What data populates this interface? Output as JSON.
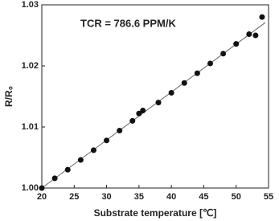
{
  "chart_data": {
    "type": "scatter",
    "annotation": "TCR = 786.6 PPM/K",
    "x_label": "Substrate temperature [℃]",
    "y_label": "R/R₀",
    "xlim": [
      20,
      55
    ],
    "ylim": [
      1.0,
      1.03
    ],
    "xticks": [
      20,
      25,
      30,
      35,
      40,
      45,
      50,
      55
    ],
    "yticks": [
      {
        "value": 1.0,
        "label": "1.00"
      },
      {
        "value": 1.01,
        "label": "1.01"
      },
      {
        "value": 1.02,
        "label": "1.02"
      },
      {
        "value": 1.03,
        "label": "1.03"
      }
    ],
    "series": [
      {
        "color": "#111111",
        "x": [
          20,
          22,
          24,
          26,
          28,
          30,
          32,
          34,
          35,
          35.6,
          38,
          40,
          42,
          44,
          46,
          48,
          50,
          52,
          53,
          54
        ],
        "values": [
          1.0,
          1.0016,
          1.003,
          1.0046,
          1.0062,
          1.0078,
          1.0094,
          1.011,
          1.0122,
          1.0127,
          1.014,
          1.0156,
          1.0172,
          1.0188,
          1.0204,
          1.022,
          1.0236,
          1.0252,
          1.025,
          1.028
        ]
      }
    ],
    "fit_line": {
      "color": "#666666",
      "x": [
        20,
        54.5
      ],
      "values": [
        1.0,
        1.0271
      ]
    }
  }
}
